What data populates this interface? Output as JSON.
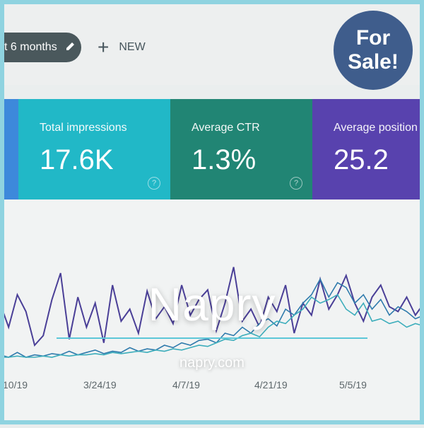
{
  "toolbar": {
    "date_range": "t 6 months",
    "new_label": "NEW"
  },
  "cards": [
    {
      "label": "",
      "value": "",
      "color": "#2d7fd8"
    },
    {
      "label": "Total impressions",
      "value": "17.6K",
      "color": "#0fb2c3"
    },
    {
      "label": "Average CTR",
      "value": "1.3%",
      "color": "#0f7b69"
    },
    {
      "label": "Average position",
      "value": "25.2",
      "color": "#4a32a8"
    }
  ],
  "chart": {
    "x_ticks": [
      "10/19",
      "3/24/19",
      "4/7/19",
      "4/21/19",
      "5/5/19"
    ]
  },
  "chart_data": {
    "type": "line",
    "x_ticks": [
      "10/19",
      "3/24/19",
      "4/7/19",
      "4/21/19",
      "5/5/19"
    ],
    "series": [
      {
        "color": "#3b2f8f",
        "values": [
          0.55,
          0.35,
          0.62,
          0.48,
          0.2,
          0.28,
          0.58,
          0.8,
          0.25,
          0.6,
          0.35,
          0.55,
          0.22,
          0.7,
          0.4,
          0.5,
          0.3,
          0.65,
          0.42,
          0.52,
          0.38,
          0.7,
          0.45,
          0.58,
          0.66,
          0.32,
          0.55,
          0.85,
          0.4,
          0.5,
          0.35,
          0.6,
          0.48,
          0.7,
          0.3,
          0.55,
          0.45,
          0.75,
          0.5,
          0.62,
          0.78,
          0.55,
          0.4,
          0.6,
          0.7,
          0.52,
          0.48,
          0.6,
          0.45,
          0.55
        ]
      },
      {
        "color": "#1d6fa5",
        "values": [
          0.12,
          0.1,
          0.14,
          0.1,
          0.12,
          0.11,
          0.13,
          0.12,
          0.15,
          0.12,
          0.14,
          0.16,
          0.13,
          0.15,
          0.14,
          0.18,
          0.15,
          0.17,
          0.16,
          0.2,
          0.18,
          0.22,
          0.2,
          0.24,
          0.25,
          0.22,
          0.3,
          0.28,
          0.35,
          0.3,
          0.38,
          0.42,
          0.36,
          0.5,
          0.45,
          0.55,
          0.62,
          0.75,
          0.6,
          0.72,
          0.68,
          0.55,
          0.62,
          0.5,
          0.58,
          0.45,
          0.52,
          0.48,
          0.42,
          0.45
        ]
      },
      {
        "color": "#2ca7b6",
        "values": [
          0.1,
          0.1,
          0.11,
          0.1,
          0.1,
          0.11,
          0.1,
          0.12,
          0.11,
          0.12,
          0.12,
          0.13,
          0.12,
          0.14,
          0.13,
          0.14,
          0.15,
          0.14,
          0.16,
          0.15,
          0.17,
          0.16,
          0.18,
          0.2,
          0.19,
          0.22,
          0.25,
          0.24,
          0.28,
          0.3,
          0.27,
          0.35,
          0.4,
          0.38,
          0.45,
          0.5,
          0.6,
          0.55,
          0.58,
          0.62,
          0.5,
          0.45,
          0.55,
          0.4,
          0.42,
          0.38,
          0.4,
          0.35,
          0.38,
          0.36
        ]
      }
    ]
  },
  "brand": {
    "name": "Napry",
    "url": "napry.com",
    "line_color": "#5dc7d8"
  },
  "badge": {
    "line1": "For",
    "line2": "Sale!",
    "color": "#3f5d8c"
  }
}
